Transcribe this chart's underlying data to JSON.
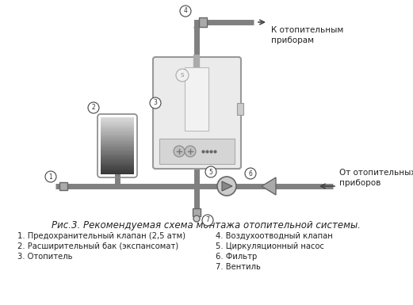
{
  "title": "Рис.3. Рекомендуемая схема монтажа отопительной системы.",
  "labels_left": [
    "1. Предохранительный клапан (2,5 атм)",
    "2. Расширительный бак (экспансомат)",
    "3. Отопитель"
  ],
  "labels_right": [
    "4. Воздухоотводный клапан",
    "5. Циркуляционный насос",
    "6. Фильтр",
    "7. Вентиль"
  ],
  "text_top_right": "К отопительным\nприборам",
  "text_mid_right": "От отопительных\nприборов",
  "bg_color": "#ffffff",
  "pipe_color": "#808080",
  "boiler_color": "#ebebeb",
  "boiler_border": "#999999",
  "title_fontsize": 8.5,
  "label_fontsize": 7.2
}
